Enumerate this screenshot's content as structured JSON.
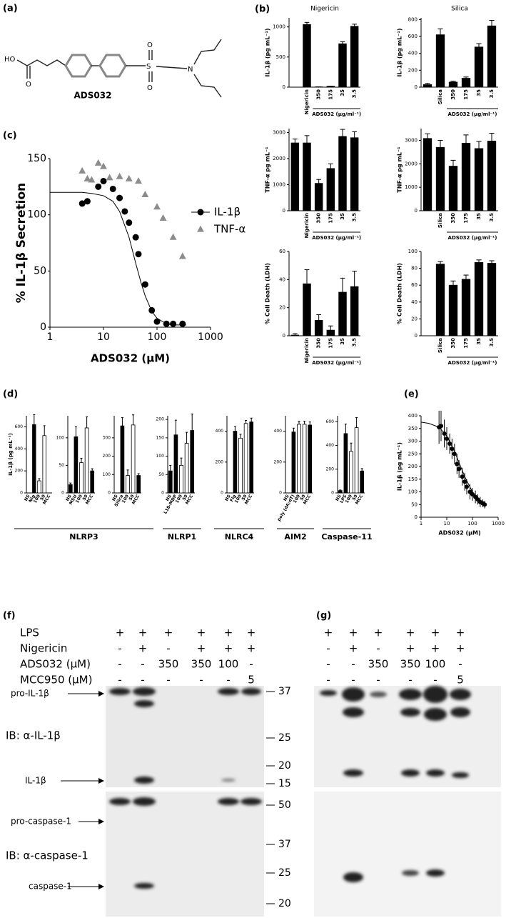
{
  "panel_labels": [
    "(a)",
    "(b)",
    "(c)",
    "(d)",
    "(e)",
    "(f)",
    "(g)"
  ],
  "structure": {
    "atoms": [
      "HO",
      "O",
      "S",
      "O",
      "O",
      "N"
    ],
    "name": "ADS032"
  },
  "chart_data": [
    {
      "type": "bar",
      "title": "Nigericin",
      "ylabel": "IL-1β (pg mL⁻¹)",
      "categories": [
        null,
        "Nigericin",
        "350",
        "175",
        "35",
        "3.5"
      ],
      "values": [
        0,
        1040,
        5,
        15,
        720,
        1010
      ],
      "errors": [
        0,
        35,
        0,
        0,
        35,
        35
      ],
      "color": "#000000",
      "ylim": [
        0,
        1150
      ],
      "yticks": [
        0,
        500,
        1000
      ],
      "group_label": "ADS032 (μg/ml⁻¹)"
    },
    {
      "type": "bar",
      "title": "Silica",
      "ylabel": "IL-1β (pg mL⁻¹)",
      "categories": [
        null,
        "Silica",
        "350",
        "175",
        "35",
        "3.5"
      ],
      "values": [
        30,
        620,
        60,
        105,
        475,
        725
      ],
      "errors": [
        15,
        70,
        10,
        15,
        40,
        65
      ],
      "color": "#000000",
      "ylim": [
        0,
        820
      ],
      "yticks": [
        0,
        200,
        400,
        600,
        800
      ],
      "group_label": "ADS032 (μg/ml⁻¹)"
    },
    {
      "type": "bar",
      "ylabel": "TNF-α pg mL⁻¹",
      "categories": [
        null,
        "Nigericin",
        "350",
        "175",
        "35",
        "3.5"
      ],
      "values": [
        2600,
        2600,
        1050,
        1620,
        2850,
        2800
      ],
      "errors": [
        150,
        280,
        150,
        180,
        270,
        230
      ],
      "color": "#000000",
      "ylim": [
        0,
        3150
      ],
      "yticks": [
        0,
        1000,
        2000,
        3000
      ],
      "group_label": "ADS032 (μg/ml⁻¹)"
    },
    {
      "type": "bar",
      "ylabel": "TNF-α pg mL⁻¹",
      "categories": [
        null,
        "Silica",
        "350",
        "175",
        "35",
        "3.5"
      ],
      "values": [
        3080,
        2700,
        1900,
        2880,
        2650,
        2970
      ],
      "errors": [
        200,
        300,
        250,
        350,
        300,
        330
      ],
      "color": "#000000",
      "ylim": [
        0,
        3500
      ],
      "yticks": [
        0,
        1000,
        2000,
        3000
      ],
      "group_label": "ADS032 (μg/ml⁻¹)"
    },
    {
      "type": "bar",
      "ylabel": "% Cell Death (LDH)",
      "categories": [
        null,
        "Nigericin",
        "350",
        "175",
        "35",
        "3.5"
      ],
      "values": [
        0.5,
        37,
        11,
        4,
        31,
        35
      ],
      "errors": [
        1,
        10,
        4,
        3,
        10,
        11
      ],
      "color": "#000000",
      "ylim": [
        0,
        60
      ],
      "yticks": [
        0,
        20,
        40,
        60
      ],
      "group_label": "ADS032 (μg/ml⁻¹)"
    },
    {
      "type": "bar",
      "ylabel": "% Cell Death (LDH)",
      "categories": [
        null,
        "Silica",
        "350",
        "175",
        "35",
        "3.5"
      ],
      "values": [
        0,
        85,
        60,
        67,
        87,
        86
      ],
      "errors": [
        0,
        3,
        5,
        5,
        3,
        3
      ],
      "color": "#000000",
      "ylim": [
        0,
        100
      ],
      "yticks": [
        0,
        20,
        40,
        60,
        80,
        100
      ],
      "group_label": "ADS032 (μg/ml⁻¹)"
    },
    {
      "type": "scatter",
      "xlabel": "ADS032 (μM)",
      "ylabel": "% IL-1β Secretion",
      "xlog": true,
      "xlim": [
        1,
        1000
      ],
      "xticks": [
        1,
        10,
        100,
        1000
      ],
      "ylim": [
        0,
        150
      ],
      "yticks": [
        0,
        50,
        100,
        150
      ],
      "legend": true,
      "series": [
        {
          "name": "IL-1β",
          "color": "#000000",
          "marker": "circle",
          "x": [
            4,
            5,
            8,
            10,
            15,
            20,
            25,
            30,
            40,
            45,
            60,
            80,
            100,
            150,
            200,
            300
          ],
          "values": [
            110,
            112,
            125,
            130,
            123,
            115,
            103,
            93,
            80,
            65,
            38,
            15,
            5,
            3,
            3,
            3
          ]
        },
        {
          "name": "TNF-α",
          "color": "#8c8c8c",
          "marker": "triangle",
          "x": [
            4,
            5,
            6,
            8,
            10,
            13,
            20,
            30,
            45,
            60,
            100,
            130,
            200,
            300
          ],
          "values": [
            139,
            132,
            131,
            146,
            143,
            133,
            134,
            132,
            130,
            118,
            107,
            97,
            80,
            63
          ]
        }
      ],
      "curve": {
        "x": [
          1,
          2,
          4,
          6,
          10,
          15,
          20,
          30,
          40,
          50,
          60,
          80,
          100,
          150,
          200,
          350
        ],
        "y": [
          120,
          120,
          120,
          119,
          117,
          112,
          103,
          80,
          57,
          40,
          28,
          14,
          8,
          3,
          2,
          2
        ]
      }
    },
    {
      "type": "bar",
      "ylabel": "IL-1β (pg mL⁻¹)",
      "categories": [
        "NS",
        "Nig",
        "100",
        "50",
        "MCC"
      ],
      "values": [
        0,
        620,
        110,
        520,
        0
      ],
      "errors": [
        0,
        90,
        20,
        90,
        0
      ],
      "bar_colors": [
        "#000",
        "#000",
        "#fff",
        "#fff",
        "#000"
      ],
      "ylim": [
        0,
        700
      ],
      "yticks": [
        0,
        200,
        400,
        600
      ]
    },
    {
      "type": "bar",
      "categories": [
        "NS",
        "MSU",
        "100",
        "50",
        "MCC"
      ],
      "values": [
        15,
        102,
        55,
        118,
        40
      ],
      "errors": [
        3,
        18,
        8,
        20,
        4
      ],
      "bar_colors": [
        "#000",
        "#000",
        "#fff",
        "#fff",
        "#000"
      ],
      "ylim": [
        0,
        140
      ],
      "yticks": [
        0,
        50,
        100
      ]
    },
    {
      "type": "bar",
      "categories": [
        "NS",
        "Silica",
        "100",
        "50",
        "MCC"
      ],
      "values": [
        0,
        365,
        95,
        370,
        95
      ],
      "errors": [
        0,
        45,
        30,
        55,
        10
      ],
      "bar_colors": [
        "#000",
        "#000",
        "#fff",
        "#fff",
        "#000"
      ],
      "ylim": [
        0,
        420
      ],
      "yticks": [
        0,
        100,
        200,
        300
      ]
    },
    {
      "type": "bar",
      "categories": [
        "NS",
        "L18-MDP",
        "100",
        "50",
        "MCC"
      ],
      "values": [
        60,
        158,
        75,
        135,
        170
      ],
      "errors": [
        15,
        40,
        20,
        30,
        45
      ],
      "bar_colors": [
        "#000",
        "#000",
        "#fff",
        "#fff",
        "#000"
      ],
      "ylim": [
        0,
        210
      ],
      "yticks": [
        0,
        50,
        100,
        150,
        200
      ]
    },
    {
      "type": "bar",
      "categories": [
        "NS",
        "Flg",
        "100",
        "50",
        "MCC"
      ],
      "values": [
        0,
        400,
        355,
        450,
        460
      ],
      "errors": [
        0,
        30,
        25,
        20,
        25
      ],
      "bar_colors": [
        "#000",
        "#000",
        "#fff",
        "#fff",
        "#000"
      ],
      "ylim": [
        0,
        500
      ],
      "yticks": [
        0,
        200,
        400
      ]
    },
    {
      "type": "bar",
      "categories": [
        "NS",
        "poly (dA:dT)",
        "100",
        "50",
        "MCC"
      ],
      "values": [
        0,
        395,
        445,
        445,
        440
      ],
      "errors": [
        0,
        25,
        20,
        20,
        20
      ],
      "bar_colors": [
        "#000",
        "#000",
        "#fff",
        "#fff",
        "#000"
      ],
      "ylim": [
        0,
        500
      ],
      "yticks": [
        0,
        200,
        400
      ]
    },
    {
      "type": "bar",
      "categories": [
        "NS",
        "LPS",
        "100",
        "50",
        "MCC"
      ],
      "values": [
        20,
        500,
        350,
        550,
        185
      ],
      "errors": [
        5,
        80,
        70,
        85,
        20
      ],
      "bar_colors": [
        "#000",
        "#000",
        "#fff",
        "#fff",
        "#000"
      ],
      "ylim": [
        0,
        650
      ],
      "yticks": [
        0,
        200,
        400,
        600
      ]
    },
    {
      "type": "scatter",
      "xlabel": "ADS032 (μM)",
      "ylabel": "IL-1β (pg mL⁻¹)",
      "xlog": true,
      "xlim": [
        1,
        1000
      ],
      "xticks": [
        1,
        10,
        100,
        1000
      ],
      "ylim": [
        0,
        400
      ],
      "yticks": [
        0,
        50,
        100,
        150,
        200,
        250,
        300,
        350,
        400
      ],
      "series": [
        {
          "color": "#000000",
          "marker": "circle",
          "x": [
            5,
            6,
            8,
            10,
            13,
            16,
            20,
            25,
            30,
            40,
            50,
            60,
            80,
            100,
            130,
            160,
            200,
            250,
            300
          ],
          "values": [
            355,
            360,
            330,
            310,
            290,
            270,
            250,
            210,
            190,
            160,
            140,
            120,
            100,
            90,
            80,
            70,
            60,
            55,
            50
          ],
          "errors": [
            65,
            60,
            55,
            45,
            40,
            40,
            40,
            40,
            35,
            35,
            35,
            30,
            30,
            25,
            25,
            20,
            20,
            15,
            15
          ]
        }
      ],
      "curve": {
        "x": [
          1,
          2,
          5,
          10,
          20,
          50,
          100,
          200,
          350
        ],
        "y": [
          375,
          370,
          355,
          320,
          260,
          160,
          100,
          65,
          50
        ]
      }
    }
  ],
  "groups": [
    "NLRP3",
    "NLRP1",
    "NLRC4",
    "AIM2",
    "Caspase-11"
  ],
  "blot": {
    "conditions": [
      {
        "label": "LPS",
        "f": [
          "+",
          "+",
          "+",
          "+",
          "+",
          "+"
        ],
        "g": [
          "+",
          "+",
          "+",
          "+",
          "+",
          "+"
        ]
      },
      {
        "label": "Nigericin",
        "f": [
          "-",
          "+",
          "-",
          "+",
          "+",
          "+"
        ],
        "g": [
          "-",
          "+",
          "-",
          "+",
          "+",
          "+"
        ]
      },
      {
        "label": "ADS032 (μM)",
        "f": [
          "-",
          "-",
          "350",
          "350",
          "100",
          "-"
        ],
        "g": [
          "-",
          "-",
          "350",
          "350",
          "100",
          "-"
        ]
      },
      {
        "label": "MCC950 (μM)",
        "f": [
          "-",
          "-",
          "-",
          "-",
          "-",
          "5"
        ],
        "g": [
          "-",
          "-",
          "-",
          "-",
          "-",
          "5"
        ]
      }
    ],
    "upper": {
      "pro": "pro-IL-1β",
      "ib": "IB: α-IL-1β",
      "mature": "IL-1β",
      "markers": [
        37,
        25,
        20,
        15
      ]
    },
    "lower": {
      "pro": "pro-caspase-1",
      "ib": "IB: α-caspase-1",
      "mature": "caspase-1",
      "markers": [
        50,
        37,
        25,
        20
      ]
    }
  }
}
